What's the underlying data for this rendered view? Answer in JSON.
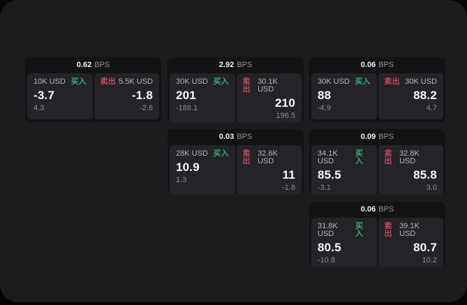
{
  "labels": {
    "buy": "买入",
    "sell": "卖出",
    "bps_unit": "BPS"
  },
  "colors": {
    "buy_green": "#2fae72",
    "sell_red": "#c2475f",
    "panel_bg": "#1c1c1e",
    "card_bg": "#131315",
    "tile_bg": "#242428",
    "outer_bg": "#060607"
  },
  "cards": [
    {
      "bps": "0.62",
      "buy": {
        "amount": "10K USD",
        "price": "-3.7",
        "delta": "4.3"
      },
      "sell": {
        "amount": "5.5K USD",
        "price": "-1.8",
        "delta": "-2.6"
      }
    },
    {
      "bps": "2.92",
      "buy": {
        "amount": "30K USD",
        "price": "201",
        "delta": "-188.1"
      },
      "sell": {
        "amount": "30.1K USD",
        "price": "210",
        "delta": "196.5"
      }
    },
    {
      "bps": "0.06",
      "buy": {
        "amount": "30K USD",
        "price": "88",
        "delta": "-4.9"
      },
      "sell": {
        "amount": "30K USD",
        "price": "88.2",
        "delta": "4.7"
      }
    },
    {
      "bps": "0.03",
      "buy": {
        "amount": "28K USD",
        "price": "10.9",
        "delta": "1.3"
      },
      "sell": {
        "amount": "32.6K USD",
        "price": "11",
        "delta": "-1.8"
      }
    },
    {
      "bps": "0.09",
      "buy": {
        "amount": "34.1K USD",
        "price": "85.5",
        "delta": "-3.1"
      },
      "sell": {
        "amount": "32.8K USD",
        "price": "85.8",
        "delta": "3.0"
      }
    },
    {
      "bps": "0.06",
      "buy": {
        "amount": "31.8K USD",
        "price": "80.5",
        "delta": "-10.8"
      },
      "sell": {
        "amount": "39.1K USD",
        "price": "80.7",
        "delta": "10.2"
      }
    }
  ]
}
